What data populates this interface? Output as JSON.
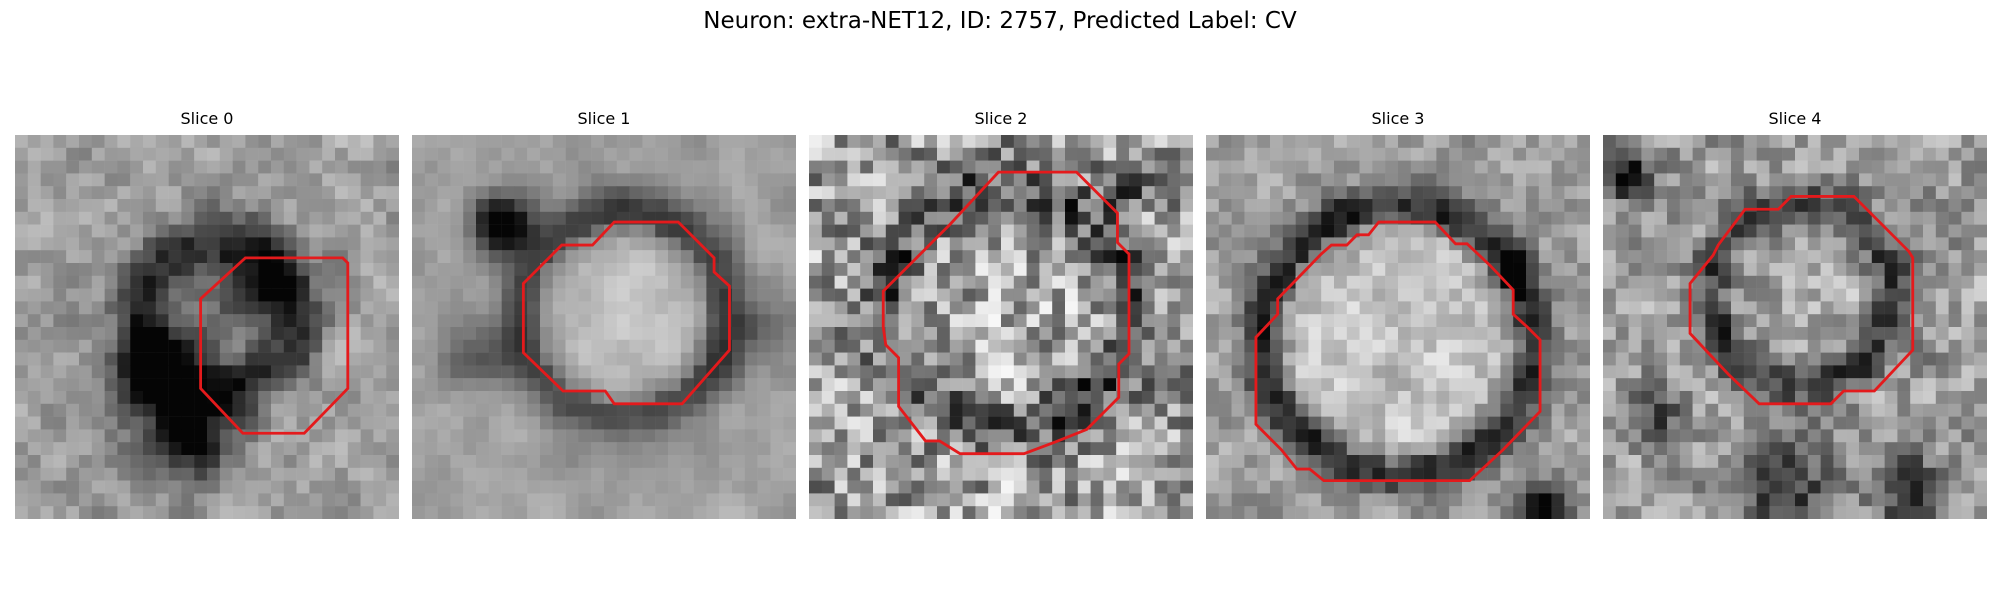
{
  "figure": {
    "title": "Neuron: extra-NET12, ID: 2757, Predicted Label: CV"
  },
  "panels": [
    {
      "title": "Slice 0",
      "image": "grayscale-em-patch",
      "contour_color": "#e41a1c"
    },
    {
      "title": "Slice 1",
      "image": "grayscale-em-patch",
      "contour_color": "#e41a1c"
    },
    {
      "title": "Slice 2",
      "image": "grayscale-em-patch",
      "contour_color": "#e41a1c"
    },
    {
      "title": "Slice 3",
      "image": "grayscale-em-patch",
      "contour_color": "#e41a1c"
    },
    {
      "title": "Slice 4",
      "image": "grayscale-em-patch",
      "contour_color": "#e41a1c"
    }
  ]
}
